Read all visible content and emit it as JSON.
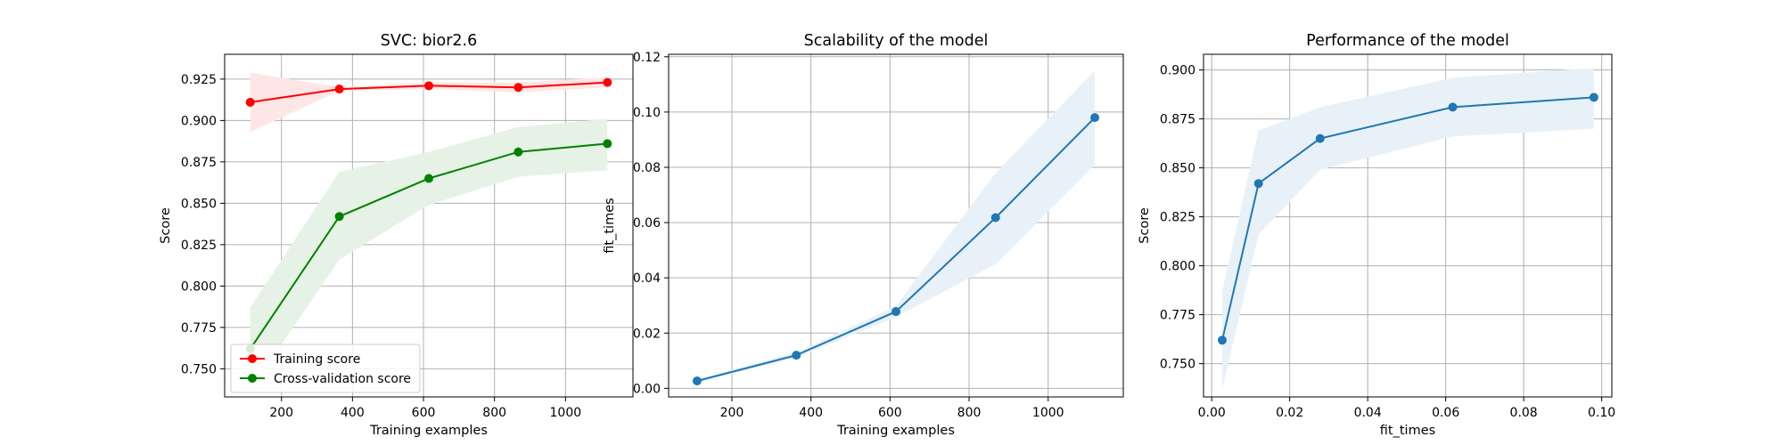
{
  "chart_data": [
    {
      "type": "line",
      "title": "SVC: bior2.6",
      "xlabel": "Training examples",
      "ylabel": "Score",
      "xlim": [
        40,
        1190
      ],
      "ylim": [
        0.733,
        0.94
      ],
      "xticks": [
        200,
        400,
        600,
        800,
        1000
      ],
      "yticks": [
        0.75,
        0.775,
        0.8,
        0.825,
        0.85,
        0.875,
        0.9,
        0.925
      ],
      "ytick_decimals": 3,
      "grid": true,
      "legend_position": "lower-left",
      "x": [
        112,
        363,
        615,
        867,
        1118
      ],
      "series": [
        {
          "name": "Training score",
          "color": "#ff0000",
          "values": [
            0.911,
            0.919,
            0.921,
            0.92,
            0.923
          ],
          "band_low": [
            0.893,
            0.918,
            0.919,
            0.917,
            0.92
          ],
          "band_high": [
            0.929,
            0.92,
            0.923,
            0.923,
            0.926
          ]
        },
        {
          "name": "Cross-validation score",
          "color": "#008000",
          "values": [
            0.762,
            0.842,
            0.865,
            0.881,
            0.886
          ],
          "band_low": [
            0.737,
            0.816,
            0.849,
            0.866,
            0.87
          ],
          "band_high": [
            0.787,
            0.869,
            0.881,
            0.896,
            0.901
          ]
        }
      ]
    },
    {
      "type": "line",
      "title": "Scalability of the model",
      "xlabel": "Training examples",
      "ylabel": "fit_times",
      "xlim": [
        40,
        1190
      ],
      "ylim": [
        -0.0031,
        0.1209
      ],
      "xticks": [
        200,
        400,
        600,
        800,
        1000
      ],
      "yticks": [
        0.0,
        0.02,
        0.04,
        0.06,
        0.08,
        0.1,
        0.12
      ],
      "ytick_decimals": 2,
      "grid": true,
      "x": [
        112,
        363,
        615,
        867,
        1118
      ],
      "series": [
        {
          "color": "#1f77b4",
          "values": [
            0.0027,
            0.012,
            0.0278,
            0.0618,
            0.098
          ],
          "band_low": [
            0.0022,
            0.011,
            0.0258,
            0.045,
            0.081
          ],
          "band_high": [
            0.0032,
            0.013,
            0.0298,
            0.078,
            0.115
          ]
        }
      ]
    },
    {
      "type": "line",
      "title": "Performance of the model",
      "xlabel": "fit_times",
      "ylabel": "Score",
      "xlim": [
        -0.0021,
        0.1026
      ],
      "ylim": [
        0.733,
        0.908
      ],
      "xticks": [
        0.0,
        0.02,
        0.04,
        0.06,
        0.08,
        0.1
      ],
      "xtick_decimals": 2,
      "yticks": [
        0.75,
        0.775,
        0.8,
        0.825,
        0.85,
        0.875,
        0.9
      ],
      "ytick_decimals": 3,
      "grid": true,
      "x": [
        0.0027,
        0.012,
        0.0278,
        0.0618,
        0.098
      ],
      "series": [
        {
          "color": "#1f77b4",
          "values": [
            0.762,
            0.842,
            0.865,
            0.881,
            0.886
          ],
          "band_low": [
            0.737,
            0.816,
            0.849,
            0.866,
            0.87
          ],
          "band_high": [
            0.787,
            0.869,
            0.881,
            0.896,
            0.901
          ]
        }
      ]
    }
  ]
}
